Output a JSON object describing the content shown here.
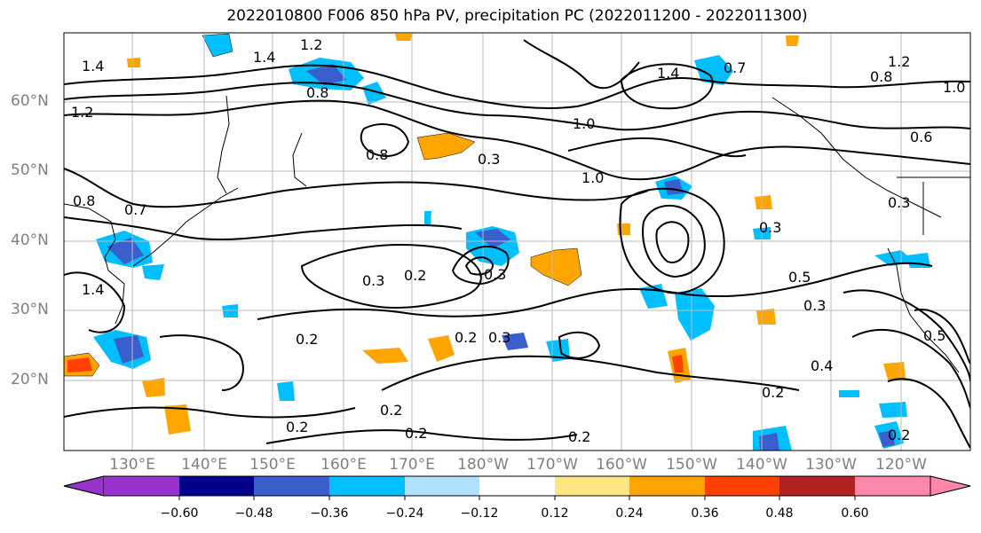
{
  "title": "2022010800 F006 850 hPa PV, precipitation PC (2022011200 - 2022011300)",
  "lat_labels": [
    "60°N",
    "50°N",
    "40°N",
    "30°N",
    "20°N"
  ],
  "lon_labels": [
    "130°E",
    "140°E",
    "150°E",
    "160°E",
    "170°E",
    "180°W",
    "170°W",
    "160°W",
    "150°W",
    "140°W",
    "130°W",
    "120°W"
  ],
  "colorbar": {
    "colors": [
      "#9932cc",
      "#00008b",
      "#3a5fcd",
      "#00bfff",
      "#b0e2ff",
      "#ffffff",
      "#ffe680",
      "#ffa500",
      "#ff4000",
      "#b22222",
      "#ff88aa"
    ],
    "ticks": [
      "−0.60",
      "−0.48",
      "−0.36",
      "−0.24",
      "−0.12",
      "0.12",
      "0.24",
      "0.36",
      "0.48",
      "0.60"
    ]
  },
  "contour_labels": [
    "1.4",
    "1.2",
    "1.4",
    "1.2",
    "0.8",
    "1.0",
    "1.0",
    "0.8",
    "1.4",
    "0.7",
    "1.2",
    "0.8",
    "1.0",
    "0.3",
    "0.8",
    "0.7",
    "1.4",
    "0.3",
    "0.2",
    "0.3",
    "0.5",
    "0.3",
    "0.2",
    "0.2",
    "0.3",
    "0.4",
    "0.2",
    "0.2",
    "0.2",
    "0.2",
    "0.2",
    "0.3",
    "0.6",
    "0.3",
    "0.2",
    "0.5"
  ]
}
